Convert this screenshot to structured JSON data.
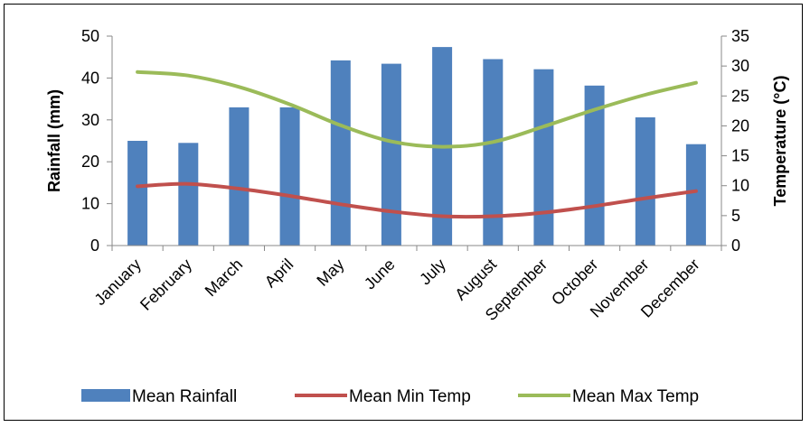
{
  "chart_data": {
    "type": "bar",
    "categories": [
      "January",
      "February",
      "March",
      "April",
      "May",
      "June",
      "July",
      "August",
      "September",
      "October",
      "November",
      "December"
    ],
    "series": [
      {
        "name": "Mean Rainfall",
        "type": "bar",
        "axis": "left",
        "color": "#4F81BD",
        "values": [
          25,
          24.5,
          33,
          33,
          44.2,
          43.4,
          47.4,
          44.5,
          42.1,
          38.2,
          30.6,
          24.2
        ]
      },
      {
        "name": "Mean Min Temp",
        "type": "line",
        "axis": "right",
        "color": "#C0504D",
        "values": [
          9.9,
          10.3,
          9.5,
          8.3,
          6.9,
          5.7,
          4.9,
          4.9,
          5.5,
          6.6,
          7.9,
          9.1
        ]
      },
      {
        "name": "Mean Max Temp",
        "type": "line",
        "axis": "right",
        "color": "#9BBB59",
        "values": [
          29,
          28.4,
          26.5,
          23.6,
          20.1,
          17.4,
          16.5,
          17.3,
          19.9,
          22.7,
          25.2,
          27.2
        ]
      }
    ],
    "ylabel": "Rainfall (mm)",
    "y2label": "Temperature (°C)",
    "ylim": [
      0,
      50
    ],
    "y2lim": [
      0,
      35
    ],
    "yticks": [
      "0",
      "10",
      "20",
      "30",
      "40",
      "50"
    ],
    "y2ticks": [
      "0",
      "5",
      "10",
      "15",
      "20",
      "25",
      "30",
      "35"
    ],
    "grid": false,
    "legend": "bottom"
  }
}
